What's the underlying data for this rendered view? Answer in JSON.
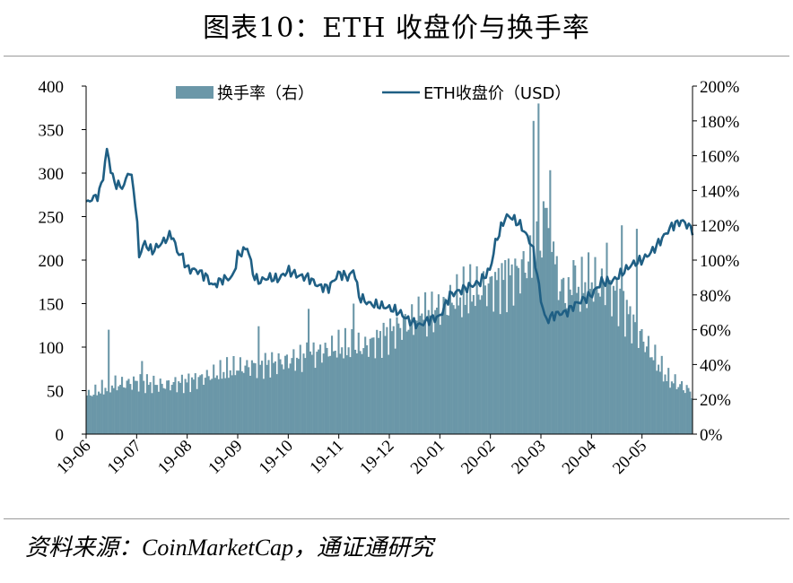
{
  "page": {
    "title": "图表10：ETH 收盘价与换手率",
    "source": "资料来源：CoinMarketCap，通证通研究"
  },
  "chart_data": {
    "type": "bar",
    "title": "图表10：ETH 收盘价与换手率",
    "x_tick_labels": [
      "19-06",
      "19-07",
      "19-08",
      "19-09",
      "19-10",
      "19-11",
      "19-12",
      "20-01",
      "20-02",
      "20-03",
      "20-04",
      "20-05"
    ],
    "y_left": {
      "label": "ETH收盘价（USD）",
      "ticks": [
        0,
        50,
        100,
        150,
        200,
        250,
        300,
        350,
        400
      ],
      "range": [
        0,
        400
      ]
    },
    "y_right": {
      "label": "换手率（右）",
      "ticks": [
        "0%",
        "20%",
        "40%",
        "60%",
        "80%",
        "100%",
        "120%",
        "140%",
        "160%",
        "180%",
        "200%"
      ],
      "range": [
        0,
        200
      ]
    },
    "grid": false,
    "legend_position": "top-center",
    "series": [
      {
        "name": "换手率（右）",
        "type": "bar",
        "axis": "right",
        "color": "#6b97a8",
        "month_index": [
          0,
          0.5,
          1,
          1.5,
          2,
          2.5,
          3,
          3.5,
          4,
          4.5,
          5,
          5.5,
          6,
          6.5,
          7,
          7.5,
          8,
          8.5,
          9,
          9.2,
          9.3,
          9.5,
          10,
          10.5,
          11,
          11.5,
          12
        ],
        "values": [
          22,
          28,
          30,
          28,
          30,
          34,
          38,
          40,
          42,
          46,
          50,
          50,
          58,
          66,
          72,
          80,
          85,
          92,
          105,
          130,
          90,
          80,
          88,
          80,
          55,
          32,
          24
        ],
        "spikes": [
          [
            0.45,
            60
          ],
          [
            1.1,
            42
          ],
          [
            3.4,
            62
          ],
          [
            4.4,
            72
          ],
          [
            5.3,
            75
          ],
          [
            6.6,
            68
          ],
          [
            7.3,
            72
          ],
          [
            8.3,
            100
          ],
          [
            8.85,
            180
          ],
          [
            8.95,
            190
          ],
          [
            9.1,
            130
          ],
          [
            9.65,
            100
          ],
          [
            10.3,
            110
          ],
          [
            10.6,
            120
          ],
          [
            10.9,
            118
          ]
        ]
      },
      {
        "name": "ETH收盘价（USD）",
        "type": "line",
        "axis": "left",
        "color": "#1f5f84",
        "month_index": [
          0,
          0.1,
          0.25,
          0.35,
          0.42,
          0.48,
          0.55,
          0.65,
          0.75,
          0.85,
          0.95,
          1.0,
          1.05,
          1.15,
          1.3,
          1.5,
          1.7,
          1.8,
          1.9,
          2.0,
          2.2,
          2.4,
          2.5,
          2.7,
          2.9,
          3.0,
          3.1,
          3.2,
          3.3,
          3.4,
          3.6,
          3.8,
          4.0,
          4.2,
          4.4,
          4.6,
          4.8,
          5.0,
          5.2,
          5.3,
          5.4,
          5.6,
          5.8,
          6.0,
          6.2,
          6.4,
          6.6,
          6.8,
          7.0,
          7.2,
          7.4,
          7.6,
          7.8,
          8.0,
          8.1,
          8.2,
          8.3,
          8.4,
          8.5,
          8.6,
          8.7,
          8.8,
          8.85,
          8.88,
          8.92,
          8.96,
          9.0,
          9.1,
          9.2,
          9.3,
          9.5,
          9.7,
          10.0,
          10.2,
          10.4,
          10.6,
          10.8,
          11.0,
          11.2,
          11.4,
          11.6,
          11.8,
          12.0
        ],
        "values": [
          265,
          270,
          275,
          300,
          330,
          305,
          290,
          285,
          285,
          305,
          280,
          250,
          205,
          220,
          210,
          220,
          230,
          210,
          205,
          190,
          188,
          180,
          170,
          178,
          180,
          205,
          210,
          215,
          185,
          175,
          180,
          178,
          188,
          182,
          180,
          170,
          168,
          185,
          180,
          190,
          158,
          150,
          148,
          145,
          140,
          130,
          125,
          132,
          135,
          160,
          165,
          170,
          175,
          190,
          220,
          235,
          250,
          250,
          245,
          240,
          230,
          220,
          210,
          200,
          185,
          170,
          155,
          130,
          135,
          138,
          140,
          150,
          160,
          175,
          175,
          185,
          195,
          200,
          210,
          225,
          240,
          245,
          235
        ]
      }
    ]
  }
}
